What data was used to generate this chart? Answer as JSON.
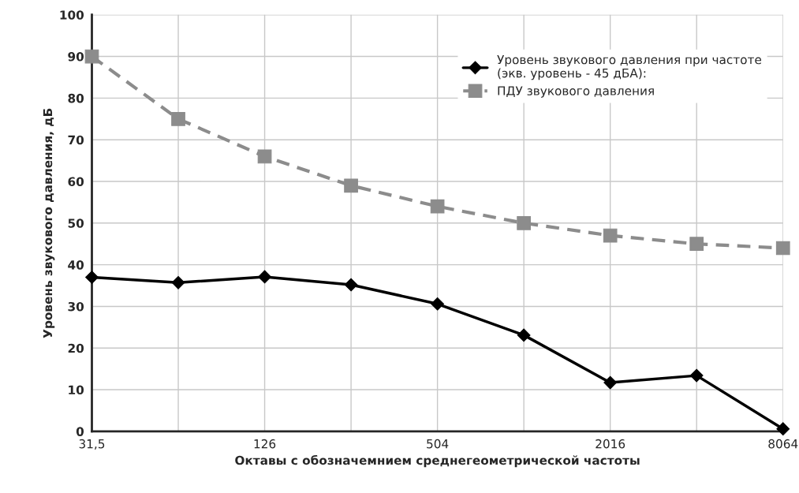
{
  "chart_data": {
    "type": "line",
    "xlabel": "Октавы с обозначемнием среднегеометрической частоты",
    "ylabel": "Уровень звукового давления, дБ",
    "categories": [
      "31,5",
      null,
      "126",
      null,
      "504",
      null,
      "2016",
      null,
      "8064"
    ],
    "series": [
      {
        "name": "Уровень звукового давления при частоте\n(экв. уровень - 45 дБА):",
        "color": "#000000",
        "marker": "diamond",
        "line_style": "solid",
        "values": [
          37,
          35.7,
          37.1,
          35.2,
          30.6,
          23.1,
          11.7,
          13.4,
          0.6
        ]
      },
      {
        "name": "ПДУ звукового давления",
        "color": "#8c8c8c",
        "marker": "square",
        "line_style": "dashed",
        "values": [
          90,
          75,
          66,
          59,
          54,
          50,
          47,
          45,
          44
        ]
      }
    ],
    "ylim": [
      0,
      100
    ],
    "yticks": [
      0,
      10,
      20,
      30,
      40,
      50,
      60,
      70,
      80,
      90,
      100
    ],
    "grid": true,
    "legend": "top right"
  }
}
